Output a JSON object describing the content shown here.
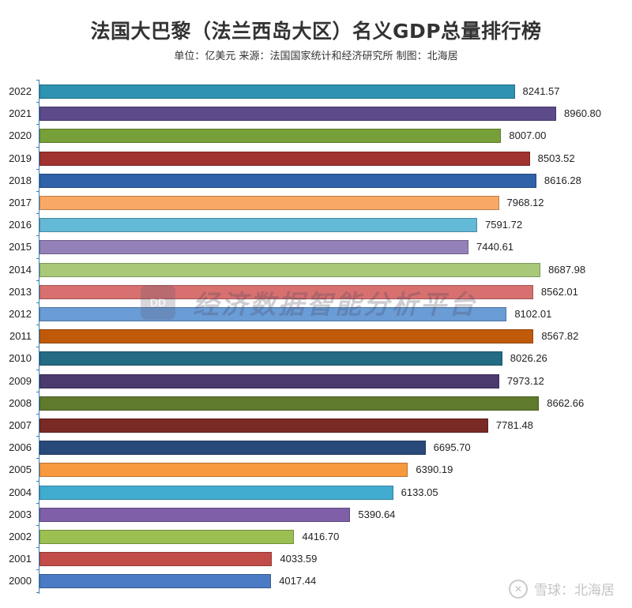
{
  "chart_data": {
    "type": "bar",
    "orientation": "horizontal",
    "title": "法国大巴黎（法兰西岛大区）名义GDP总量排行榜",
    "subtitle": "单位：亿美元 来源：法国国家统计和经济研究所 制图：北海居",
    "xlabel": "",
    "ylabel": "",
    "unit": "亿美元",
    "grid": false,
    "legend": null,
    "categories": [
      "2022",
      "2021",
      "2020",
      "2019",
      "2018",
      "2017",
      "2016",
      "2015",
      "2014",
      "2013",
      "2012",
      "2011",
      "2010",
      "2009",
      "2008",
      "2007",
      "2006",
      "2005",
      "2004",
      "2003",
      "2002",
      "2001",
      "2000"
    ],
    "values": [
      8241.57,
      8960.8,
      8007.0,
      8503.52,
      8616.28,
      7968.12,
      7591.72,
      7440.61,
      8687.98,
      8562.01,
      8102.01,
      8567.82,
      8026.26,
      7973.12,
      8662.66,
      7781.48,
      6695.7,
      6390.19,
      6133.05,
      5390.64,
      4416.7,
      4033.59,
      4017.44
    ],
    "value_labels": [
      "8241.57",
      "8960.80",
      "8007.00",
      "8503.52",
      "8616.28",
      "7968.12",
      "7591.72",
      "7440.61",
      "8687.98",
      "8562.01",
      "8102.01",
      "8567.82",
      "8026.26",
      "7973.12",
      "8662.66",
      "7781.48",
      "6695.70",
      "6390.19",
      "6133.05",
      "5390.64",
      "4416.70",
      "4033.59",
      "4017.44"
    ],
    "colors": [
      "#2e93b0",
      "#5d4a8a",
      "#77a03a",
      "#a0332f",
      "#2f62a8",
      "#f9a866",
      "#63b9d6",
      "#9381b8",
      "#a9c978",
      "#d87070",
      "#6a9cd6",
      "#c05a0a",
      "#246b84",
      "#4b3a6d",
      "#5f7a2c",
      "#7a2a24",
      "#284a7a",
      "#f79a3f",
      "#42acd0",
      "#7e5fa8",
      "#9cbf52",
      "#c24c48",
      "#4a7bc4"
    ],
    "xlim": [
      0,
      8960.8
    ]
  },
  "header": {
    "title": "法国大巴黎（法兰西岛大区）名义GDP总量排行榜",
    "subtitle": "单位：亿美元 来源：法国国家统计和经济研究所 制图：北海居"
  },
  "watermark": {
    "logo": "DD",
    "text": "经济数据智能分析平台"
  },
  "footer": {
    "icon": "xueqiu-logo-icon",
    "text": "雪球：北海居"
  }
}
